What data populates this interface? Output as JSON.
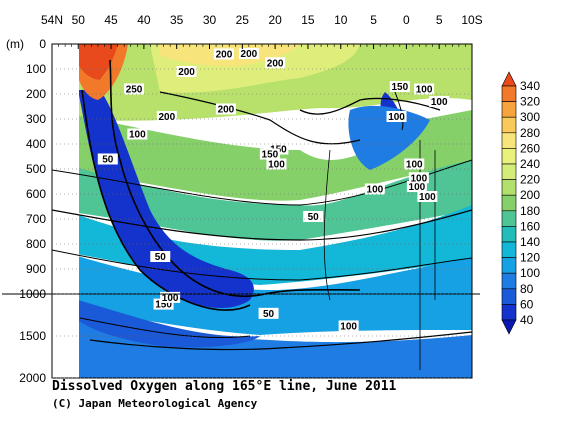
{
  "chart_data": {
    "type": "heatmap",
    "title": "Dissolved Oxygen along 165°E line, June 2011",
    "credit": "(C) Japan Meteorological Agency",
    "y_unit_label": "(m)",
    "x_axis": {
      "ticks": [
        "54N",
        "50",
        "45",
        "40",
        "35",
        "30",
        "25",
        "20",
        "15",
        "10",
        "5",
        "0",
        "5",
        "10S"
      ],
      "latitudes": [
        54,
        50,
        45,
        40,
        35,
        30,
        25,
        20,
        15,
        10,
        5,
        0,
        -5,
        -10
      ],
      "range": [
        54,
        -10
      ]
    },
    "y_axis": {
      "upper_ticks": [
        "0",
        "100",
        "200",
        "300",
        "400",
        "500",
        "600",
        "700",
        "800",
        "900",
        "1000"
      ],
      "upper_values": [
        0,
        100,
        200,
        300,
        400,
        500,
        600,
        700,
        800,
        900,
        1000
      ],
      "lower_ticks": [
        "1500",
        "2000"
      ],
      "lower_values": [
        1500,
        2000
      ],
      "break_depth": 1000,
      "range": [
        0,
        2000
      ]
    },
    "colorbar": {
      "levels": [
        "340",
        "320",
        "300",
        "280",
        "260",
        "240",
        "220",
        "200",
        "180",
        "160",
        "140",
        "120",
        "100",
        "80",
        "60",
        "40"
      ],
      "colors": [
        "#e84a1c",
        "#f2782a",
        "#f7a43c",
        "#f9c95a",
        "#f7e47a",
        "#e9f07c",
        "#d4ec78",
        "#b2e06c",
        "#86d06a",
        "#4fc494",
        "#22bdb9",
        "#13b7d8",
        "#16a1e4",
        "#1e7ce2",
        "#1a59d8",
        "#1433cc",
        "#0c17b0"
      ]
    },
    "contour_labels": [
      "200",
      "200",
      "200",
      "200",
      "250",
      "200",
      "150",
      "150",
      "100",
      "100",
      "50",
      "200",
      "150",
      "100",
      "150",
      "100",
      "100",
      "50",
      "50",
      "50",
      "100",
      "100",
      "100",
      "100",
      "100",
      "100",
      "100"
    ],
    "series_note": "Dissolved oxygen concentration shown as filled contours, labelled contour lines at 50, 100, 150, 200, 250"
  }
}
